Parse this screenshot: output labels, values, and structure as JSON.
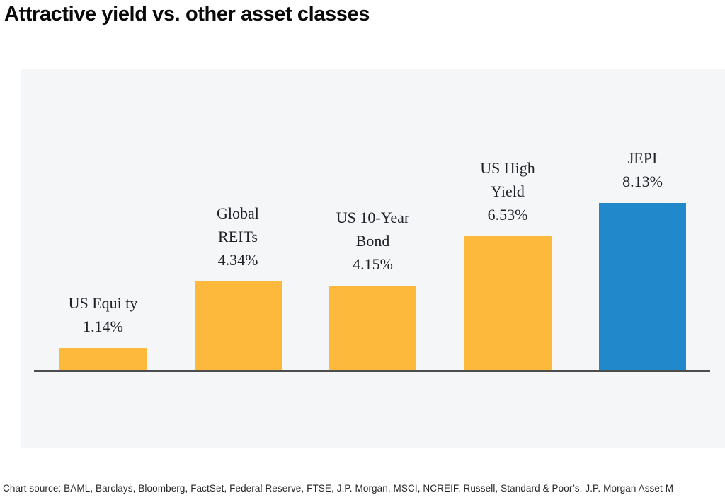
{
  "page": {
    "title": "Attractive yield vs. other asset classes",
    "source_note": "Chart source: BAML, Barclays, Bloomberg, FactSet, Federal Reserve, FTSE, J.P. Morgan, MSCI, NCREIF, Russell, Standard & Poor’s, J.P. Morgan Asset M"
  },
  "colors": {
    "bar_default": "#FCB93B",
    "bar_highlight": "#2189CB",
    "panel_bg": "#F5F6F8",
    "axis_line": "#4D4D4D",
    "label_text": "#1E2228",
    "title_text": "#0A0A0A"
  },
  "chart_data": {
    "type": "bar",
    "title": "Attractive yield vs. other asset classes",
    "categories": [
      "US Equi ty",
      "Global REITs",
      "US 10-Year Bond",
      "US High Yield",
      "JEPI"
    ],
    "values": [
      1.14,
      4.34,
      4.15,
      6.53,
      8.13
    ],
    "value_labels": [
      "1.14%",
      "4.34%",
      "4.15%",
      "6.53%",
      "8.13%"
    ],
    "label_lines": [
      [
        "US Equi ty",
        "1.14%"
      ],
      [
        "Global",
        "REITs",
        "4.34%"
      ],
      [
        "US 10-Year",
        "Bond",
        "4.15%"
      ],
      [
        "US High",
        "Yield",
        "6.53%"
      ],
      [
        "JEPI",
        "8.13%"
      ]
    ],
    "highlight_index": 4,
    "highlight_series_name": "JEPI",
    "xlabel": "",
    "ylabel": "",
    "ylim": [
      0,
      9
    ],
    "grid": false,
    "legend": false,
    "value_suffix": "%",
    "source": "Chart source: BAML, Barclays, Bloomberg, FactSet, Federal Reserve, FTSE, J.P. Morgan, MSCI, NCREIF, Russell, Standard & Poor’s, J.P. Morgan Asset M"
  }
}
